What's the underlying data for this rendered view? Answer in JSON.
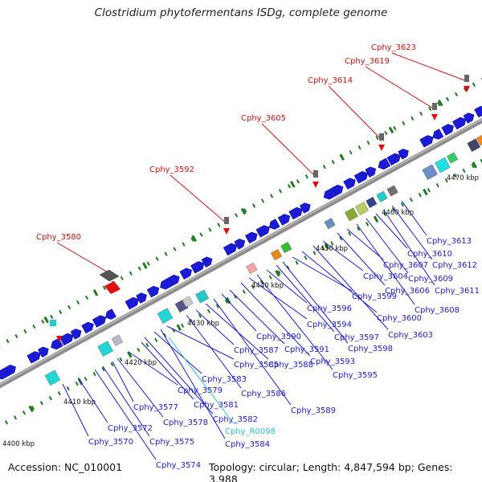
{
  "title": "Clostridium phytofermentans ISDg, complete genome",
  "footer": {
    "accession": "Accession: NC_010001",
    "stats": "Topology: circular; Length: 4,847,594 bp; Genes: 3,988"
  },
  "colors": {
    "backbone": "#8c8c8c",
    "gene_blue": "#1b1bd6",
    "label_blue": "#1b1bcc",
    "label_red": "#cc1111",
    "label_cyan": "#33bbdd",
    "tick_green": "#1f7a1f"
  },
  "scale_labels": [
    "4400 kbp",
    "4410 kbp",
    "4420 kbp",
    "4430 kbp",
    "4440 kbp",
    "4450 kbp",
    "4460 kbp",
    "4470 kbp"
  ],
  "red_labels": [
    "Cphy_3580",
    "Cphy_3592",
    "Cphy_3605",
    "Cphy_3614",
    "Cphy_3619",
    "Cphy_3623"
  ],
  "blue_labels": [
    "Cphy_3570",
    "Cphy_3572",
    "Cphy_3574",
    "Cphy_3575",
    "Cphy_3577",
    "Cphy_3578",
    "Cphy_3579",
    "Cphy_3581",
    "Cphy_3582",
    "Cphy_3583",
    "Cphy_3584",
    "Cphy_3585",
    "Cphy_3586",
    "Cphy_3587",
    "Cphy_3588",
    "Cphy_3589",
    "Cphy_3590",
    "Cphy_3591",
    "Cphy_3593",
    "Cphy_3594",
    "Cphy_3595",
    "Cphy_3596",
    "Cphy_3597",
    "Cphy_3598",
    "Cphy_3599",
    "Cphy_3600",
    "Cphy_3603",
    "Cphy_3604",
    "Cphy_3606",
    "Cphy_3607",
    "Cphy_3608",
    "Cphy_3609",
    "Cphy_3610",
    "Cphy_3611",
    "Cphy_3612",
    "Cphy_3613"
  ],
  "cyan_labels": [
    "Cphy_R0098"
  ]
}
